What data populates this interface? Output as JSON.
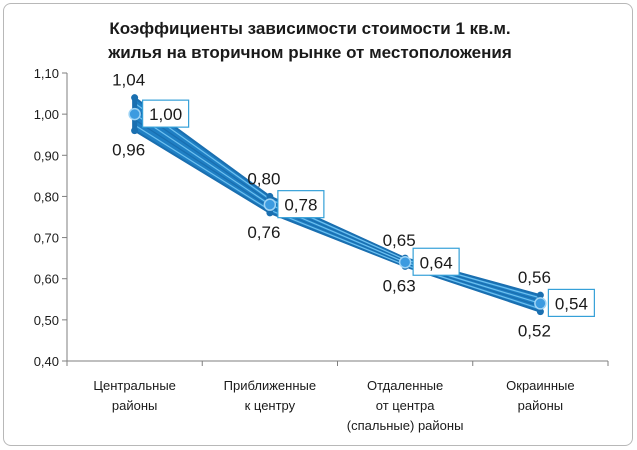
{
  "chart_data": {
    "type": "line",
    "title": "Коэффициенты зависимости стоимости 1 кв.м. жилья на вторичном рынке от местоположения",
    "title_lines": [
      "Коэффициенты зависимости стоимости 1 кв.м.",
      "жилья на вторичном рынке от местоположения"
    ],
    "categories": [
      [
        "Центральные",
        "районы"
      ],
      [
        "Приближенные",
        "к центру"
      ],
      [
        "Отдаленные",
        "от центра",
        "(спальные) районы"
      ],
      [
        "Окраинные",
        "районы"
      ]
    ],
    "y_ticks": [
      "0,40",
      "0,50",
      "0,60",
      "0,70",
      "0,80",
      "0,90",
      "1,00",
      "1,10"
    ],
    "ylim": [
      0.4,
      1.1
    ],
    "grid": false,
    "legend": "none",
    "series_max": [
      1.04,
      0.8,
      0.65,
      0.56
    ],
    "series_mid": [
      1.0,
      0.78,
      0.64,
      0.54
    ],
    "series_min": [
      0.96,
      0.76,
      0.63,
      0.52
    ],
    "labels_max": [
      "1,04",
      "0,80",
      "0,65",
      "0,56"
    ],
    "labels_mid": [
      "1,00",
      "0,78",
      "0,64",
      "0,54"
    ],
    "labels_min": [
      "0,96",
      "0,76",
      "0,63",
      "0,52"
    ],
    "colors": {
      "band_fill": "#1f7fc4",
      "band_stroke": "#1a6fb0",
      "band_line": "#6ec1f0",
      "label_box": "#35a0d8",
      "axis": "#7f7f7f"
    }
  }
}
